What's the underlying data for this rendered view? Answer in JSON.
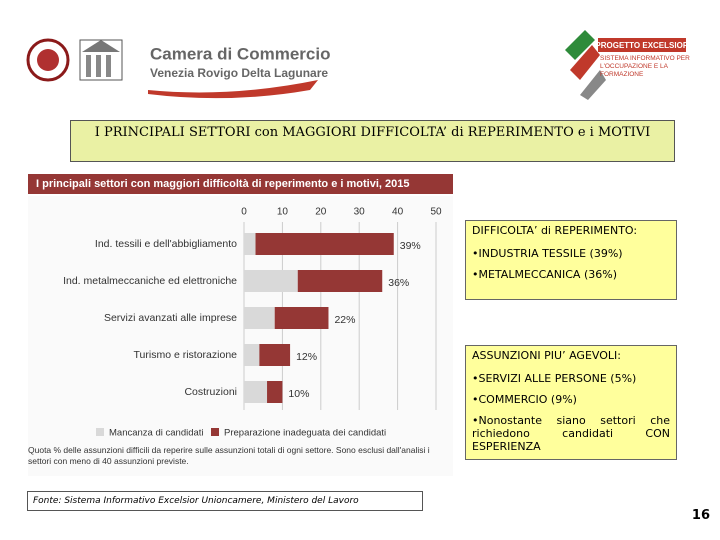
{
  "header": {
    "org_name": "Camera di Commercio",
    "org_sub": "Venezia Rovigo Delta Lagunare",
    "project_name": "PROGETTO EXCELSIOR",
    "project_sub": "SISTEMA INFORMATIVO PER L'OCCUPAZIONE E LA FORMAZIONE"
  },
  "slide_title": "I PRINCIPALI SETTORI con MAGGIORI DIFFICOLTA’ di REPERIMENTO e i MOTIVI",
  "chart_data": {
    "type": "stacked-bar-horizontal",
    "title": "I principali settori con maggiori difficoltà di reperimento e i motivi, 2015",
    "categories": [
      "Ind. tessili e dell'abbigliamento",
      "Ind. metalmeccaniche ed elettroniche",
      "Servizi avanzati alle imprese",
      "Turismo e ristorazione",
      "Costruzioni"
    ],
    "series": [
      {
        "name": "Mancanza di candidati",
        "color": "#d9d9d9",
        "values": [
          3,
          14,
          8,
          4,
          6
        ]
      },
      {
        "name": "Preparazione inadeguata dei candidati",
        "color": "#953735",
        "values": [
          36,
          22,
          14,
          8,
          4
        ]
      }
    ],
    "total_labels": [
      "39%",
      "36%",
      "22%",
      "12%",
      "10%"
    ],
    "xlim": [
      0,
      50
    ],
    "xticks": [
      0,
      10,
      20,
      30,
      40,
      50
    ],
    "grid": true,
    "note": "Quota % delle assunzioni difficili da reperire sulle assunzioni totali di ogni settore. Sono esclusi dall'analisi i settori con meno di 40 assunzioni previste."
  },
  "panel_difficolta": {
    "heading": "DIFFICOLTA’ di REPERIMENTO:",
    "items": [
      "•INDUSTRIA TESSILE (39%)",
      "•METALMECCANICA (36%)"
    ]
  },
  "panel_assunzioni": {
    "heading": "ASSUNZIONI PIU’ AGEVOLI:",
    "items": [
      "•SERVIZI ALLE PERSONE (5%)",
      "•COMMERCIO (9%)",
      "•Nonostante siano settori che richiedono candidati CON ESPERIENZA"
    ]
  },
  "source": "Fonte: Sistema Informativo Excelsior Unioncamere, Ministero del Lavoro",
  "page_number": "16"
}
